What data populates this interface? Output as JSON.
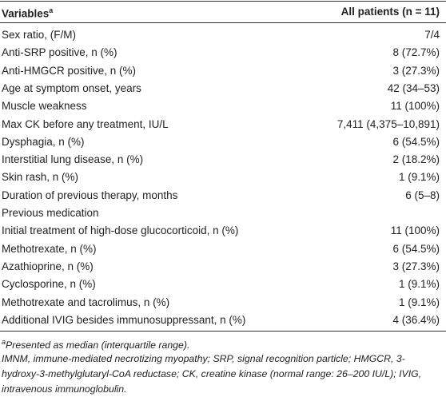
{
  "header": {
    "variables": "Variables",
    "variables_mark": "a",
    "all_patients": "All patients (n = 11)"
  },
  "rows": [
    {
      "label": "Sex ratio, (F/M)",
      "value": "7/4"
    },
    {
      "label": "Anti-SRP positive, n (%)",
      "value": "8 (72.7%)"
    },
    {
      "label": "Anti-HMGCR positive, n (%)",
      "value": "3 (27.3%)"
    },
    {
      "label": "Age at symptom onset, years",
      "value": "42 (34–53)"
    },
    {
      "label": "Muscle weakness",
      "value": "11 (100%)"
    },
    {
      "label": "Max CK before any treatment, IU/L",
      "value": "7,411 (4,375–10,891)"
    },
    {
      "label": "Dysphagia, n (%)",
      "value": "6 (54.5%)"
    },
    {
      "label": "Interstitial lung disease, n (%)",
      "value": "2 (18.2%)"
    },
    {
      "label": "Skin rash, n (%)",
      "value": "1 (9.1%)"
    },
    {
      "label": "Duration of previous therapy, months",
      "value": "6 (5–8)"
    },
    {
      "label": "Previous medication"
    },
    {
      "label": "Initial treatment of high-dose glucocorticoid, n (%)",
      "value": "11 (100%)"
    },
    {
      "label": "Methotrexate, n (%)",
      "value": "6 (54.5%)"
    },
    {
      "label": "Azathioprine, n (%)",
      "value": "3 (27.3%)"
    },
    {
      "label": "Cyclosporine, n (%)",
      "value": "1 (9.1%)"
    },
    {
      "label": "Methotrexate and tacrolimus, n (%)",
      "value": "1 (9.1%)"
    },
    {
      "label": "Additional IVIG besides immunosuppressant, n (%)",
      "value": "4 (36.4%)"
    }
  ],
  "notes": [
    {
      "mark": "a",
      "text": "Presented as median (interquartile range)."
    },
    {
      "text": "IMNM, immune-mediated necrotizing myopathy; SRP, signal recognition particle; HMGCR, 3-hydroxy-3-methylglutaryl-CoA reductase; CK, creatine kinase (normal range: 26–200 IU/L); IVIG, intravenous immunoglobulin."
    }
  ]
}
